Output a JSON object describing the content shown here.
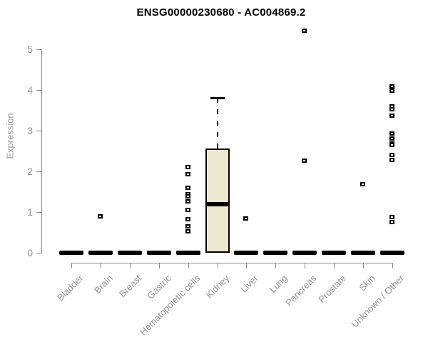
{
  "chart_data": {
    "type": "boxplot",
    "title": "ENSG00000230680 - AC004869.2",
    "ylabel": "Expression",
    "xlabel": "",
    "ylim": [
      0,
      5
    ],
    "yticks": [
      0,
      1,
      2,
      3,
      4,
      5
    ],
    "grid": false,
    "legend": "none",
    "categories": [
      "Bladder",
      "Brain",
      "Breast",
      "Gastric",
      "Hematopoietic cells",
      "Kidney",
      "Liver",
      "Lung",
      "Pancreas",
      "Prostate",
      "Skin",
      "Unknown / Other"
    ],
    "series": [
      {
        "category": "Bladder",
        "q1": 0,
        "median": 0,
        "q3": 0,
        "whisker_low": 0,
        "whisker_high": 0,
        "outliers": []
      },
      {
        "category": "Brain",
        "q1": 0,
        "median": 0,
        "q3": 0,
        "whisker_low": 0,
        "whisker_high": 0,
        "outliers": [
          0.9
        ]
      },
      {
        "category": "Breast",
        "q1": 0,
        "median": 0,
        "q3": 0,
        "whisker_low": 0,
        "whisker_high": 0,
        "outliers": []
      },
      {
        "category": "Gastric",
        "q1": 0,
        "median": 0,
        "q3": 0,
        "whisker_low": 0,
        "whisker_high": 0,
        "outliers": []
      },
      {
        "category": "Hematopoietic cells",
        "q1": 0,
        "median": 0,
        "q3": 0,
        "whisker_low": 0,
        "whisker_high": 0,
        "outliers": [
          2.1,
          1.93,
          1.6,
          1.43,
          1.39,
          1.26,
          1.05,
          0.82,
          0.65,
          0.52
        ]
      },
      {
        "category": "Kidney",
        "q1": 0,
        "median": 1.2,
        "q3": 2.57,
        "whisker_low": 0,
        "whisker_high": 3.8,
        "outliers": []
      },
      {
        "category": "Liver",
        "q1": 0,
        "median": 0,
        "q3": 0,
        "whisker_low": 0,
        "whisker_high": 0,
        "outliers": [
          0.85
        ]
      },
      {
        "category": "Lung",
        "q1": 0,
        "median": 0,
        "q3": 0,
        "whisker_low": 0,
        "whisker_high": 0,
        "outliers": []
      },
      {
        "category": "Pancreas",
        "q1": 0,
        "median": 0,
        "q3": 0,
        "whisker_low": 0,
        "whisker_high": 0,
        "outliers": [
          5.45,
          2.27
        ]
      },
      {
        "category": "Prostate",
        "q1": 0,
        "median": 0,
        "q3": 0,
        "whisker_low": 0,
        "whisker_high": 0,
        "outliers": []
      },
      {
        "category": "Skin",
        "q1": 0,
        "median": 0,
        "q3": 0,
        "whisker_low": 0,
        "whisker_high": 0,
        "outliers": [
          1.69
        ]
      },
      {
        "category": "Unknown / Other",
        "q1": 0,
        "median": 0,
        "q3": 0,
        "whisker_low": 0,
        "whisker_high": 0,
        "outliers": [
          4.08,
          3.98,
          3.6,
          3.52,
          3.37,
          2.93,
          2.8,
          2.68,
          2.65,
          2.4,
          2.28,
          0.88,
          0.75
        ]
      }
    ],
    "colors": {
      "box_fill": "#ece7cf",
      "box_border": "#000000",
      "median": "#000000",
      "flat_bar": "#000000",
      "outlier_border": "#000000",
      "outlier_fill": "#ffffff",
      "axis": "#8a8a8a",
      "labels": "#949494",
      "title": "#000000",
      "background": "#ffffff"
    }
  }
}
